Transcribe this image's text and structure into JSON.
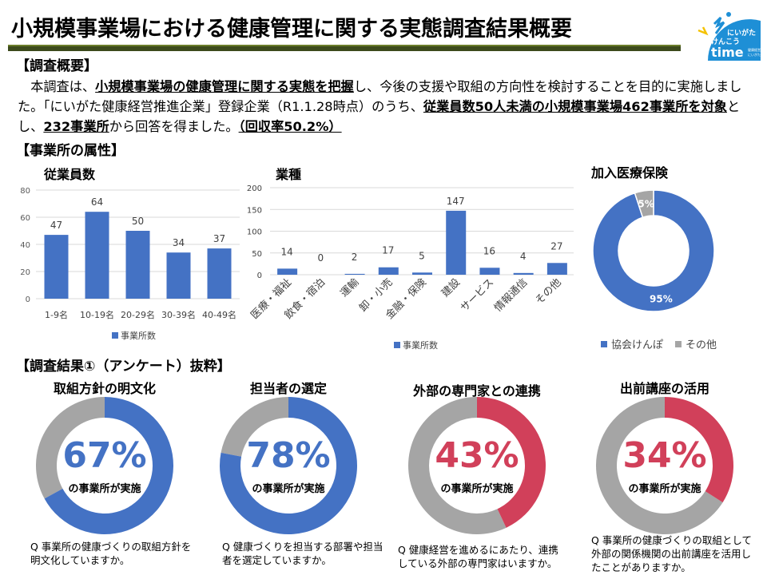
{
  "title": "小規模事業場における健康管理に関する実態調査結果概要",
  "logo": {
    "line1": "にいがた",
    "line2": "けんこう",
    "line3": "time",
    "small": "健康経営 にいがた"
  },
  "overview": {
    "heading": "【調査概要】",
    "p1": "本調査は、",
    "p1b": "小規模事業場の健康管理に関する実態を把握",
    "p2": "し、今後の支援や取組の方向性を検討することを目的に実施しました。「にいがた健康経営推進企業」登録企業（R1.1.28時点）のうち、",
    "p2b": "従業員数50人未満の小規模事業場462事業所を対象",
    "p3": "とし、",
    "p3b": "232事業所",
    "p4": "から回答を得ました。",
    "p4b": "（回収率50.2%）"
  },
  "attributes_heading": "【事業所の属性】",
  "results_heading": "【調査結果①（アンケート）抜粋】",
  "colors": {
    "blue": "#4472c4",
    "gray": "#a5a5a5",
    "red": "#d1405a"
  },
  "chart_data": [
    {
      "type": "bar",
      "title": "従業員数",
      "categories": [
        "1-9名",
        "10-19名",
        "20-29名",
        "30-39名",
        "40-49名"
      ],
      "values": [
        47,
        64,
        50,
        34,
        37
      ],
      "ylim": [
        0,
        80
      ],
      "yticks": [
        0,
        20,
        40,
        60,
        80
      ],
      "legend": "事業所数"
    },
    {
      "type": "bar",
      "title": "業種",
      "categories": [
        "医療・福祉",
        "飲食・宿泊",
        "運輸",
        "卸・小売",
        "金融・保険",
        "建設",
        "サービス",
        "情報通信",
        "その他"
      ],
      "values": [
        14,
        0,
        2,
        17,
        5,
        147,
        16,
        4,
        27
      ],
      "ylim": [
        0,
        200
      ],
      "yticks": [
        0,
        50,
        100,
        150,
        200
      ],
      "legend": "事業所数"
    },
    {
      "type": "pie",
      "title": "加入医療保険",
      "categories": [
        "協会けんぽ",
        "その他"
      ],
      "values": [
        95,
        5
      ],
      "labels": [
        "95%",
        "5%"
      ]
    }
  ],
  "gauges": [
    {
      "title": "取組方針の明文化",
      "value": 67,
      "label": "67%",
      "sub": "の事業所が実施",
      "color": "#4472c4",
      "question": "Q 事業所の健康づくりの取組方針を明文化していますか。"
    },
    {
      "title": "担当者の選定",
      "value": 78,
      "label": "78%",
      "sub": "の事業所が実施",
      "color": "#4472c4",
      "question": "Q 健康づくりを担当する部署や担当者を選定していますか。"
    },
    {
      "title": "外部の専門家との連携",
      "value": 43,
      "label": "43%",
      "sub": "の事業所が実施",
      "color": "#d1405a",
      "question": "Q 健康経営を進めるにあたり、連携している外部の専門家はいますか。"
    },
    {
      "title": "出前講座の活用",
      "value": 34,
      "label": "34%",
      "sub": "の事業所が実施",
      "color": "#d1405a",
      "question": "Q 事業所の健康づくりの取組として外部の関係機関の出前講座を活用したことがありますか。"
    }
  ]
}
